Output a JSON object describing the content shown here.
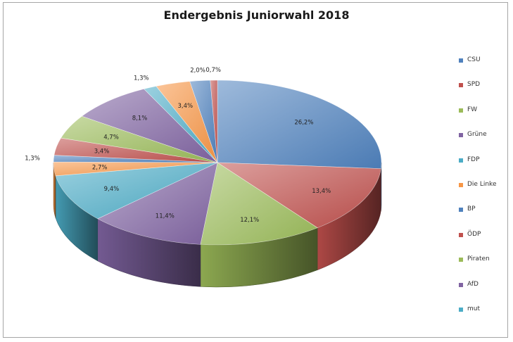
{
  "chart_data": {
    "type": "pie",
    "title": "Endergebnis Juniorwahl 2018",
    "legend_position": "right",
    "slices": [
      {
        "name": "CSU",
        "value": 26.2,
        "label": "26,2%",
        "color": "#4f81bd"
      },
      {
        "name": "SPD",
        "value": 13.4,
        "label": "13,4%",
        "color": "#c0504d"
      },
      {
        "name": "FW",
        "value": 12.1,
        "label": "12,1%",
        "color": "#9bbb59"
      },
      {
        "name": "Grüne",
        "value": 11.4,
        "label": "11,4%",
        "color": "#8064a2"
      },
      {
        "name": "FDP",
        "value": 9.4,
        "label": "9,4%",
        "color": "#4bacc6"
      },
      {
        "name": "Die Linke",
        "value": 2.7,
        "label": "2,7%",
        "color": "#f79646"
      },
      {
        "name": "BP",
        "value": 1.3,
        "label": "1,3%",
        "color": "#4f81bd"
      },
      {
        "name": "ÖDP",
        "value": 3.4,
        "label": "3,4%",
        "color": "#c0504d"
      },
      {
        "name": "Piraten",
        "value": 4.7,
        "label": "4,7%",
        "color": "#9bbb59"
      },
      {
        "name": "AfD",
        "value": 8.1,
        "label": "8,1%",
        "color": "#8064a2"
      },
      {
        "name": "mut",
        "value": 1.3,
        "label": "1,3%",
        "color": "#4bacc6"
      },
      {
        "name": "",
        "value": 3.4,
        "label": "3,4%",
        "color": "#f79646"
      },
      {
        "name": "",
        "value": 2.0,
        "label": "2,0%",
        "color": "#4f81bd"
      },
      {
        "name": "",
        "value": 0.7,
        "label": "0,7%",
        "color": "#c0504d"
      }
    ]
  }
}
